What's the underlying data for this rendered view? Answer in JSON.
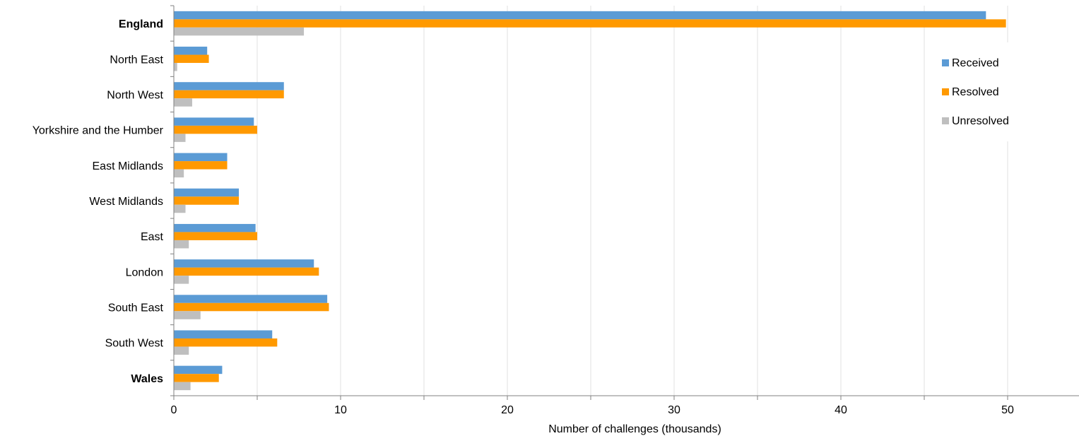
{
  "chart_data": {
    "type": "bar",
    "orientation": "horizontal",
    "categories": [
      "England",
      "North East",
      "North West",
      "Yorkshire and the Humber",
      "East Midlands",
      "West Midlands",
      "East",
      "London",
      "South East",
      "South West",
      "Wales"
    ],
    "bold_categories": [
      "England",
      "Wales"
    ],
    "series": [
      {
        "name": "Received",
        "color": "#5B9BD5",
        "values": [
          48.7,
          2.0,
          6.6,
          4.8,
          3.2,
          3.9,
          4.9,
          8.4,
          9.2,
          5.9,
          2.9
        ]
      },
      {
        "name": "Resolved",
        "color": "#FF9900",
        "values": [
          49.9,
          2.1,
          6.6,
          5.0,
          3.2,
          3.9,
          5.0,
          8.7,
          9.3,
          6.2,
          2.7
        ]
      },
      {
        "name": "Unresolved",
        "color": "#BFBFBF",
        "values": [
          7.8,
          0.2,
          1.1,
          0.7,
          0.6,
          0.7,
          0.9,
          0.9,
          1.6,
          0.9,
          1.0
        ]
      }
    ],
    "xlabel": "Number of challenges (thousands)",
    "ylabel": "",
    "xlim": [
      0,
      54
    ],
    "xticks": [
      0,
      10,
      20,
      30,
      40,
      50
    ],
    "grid": true,
    "legend": "right"
  }
}
